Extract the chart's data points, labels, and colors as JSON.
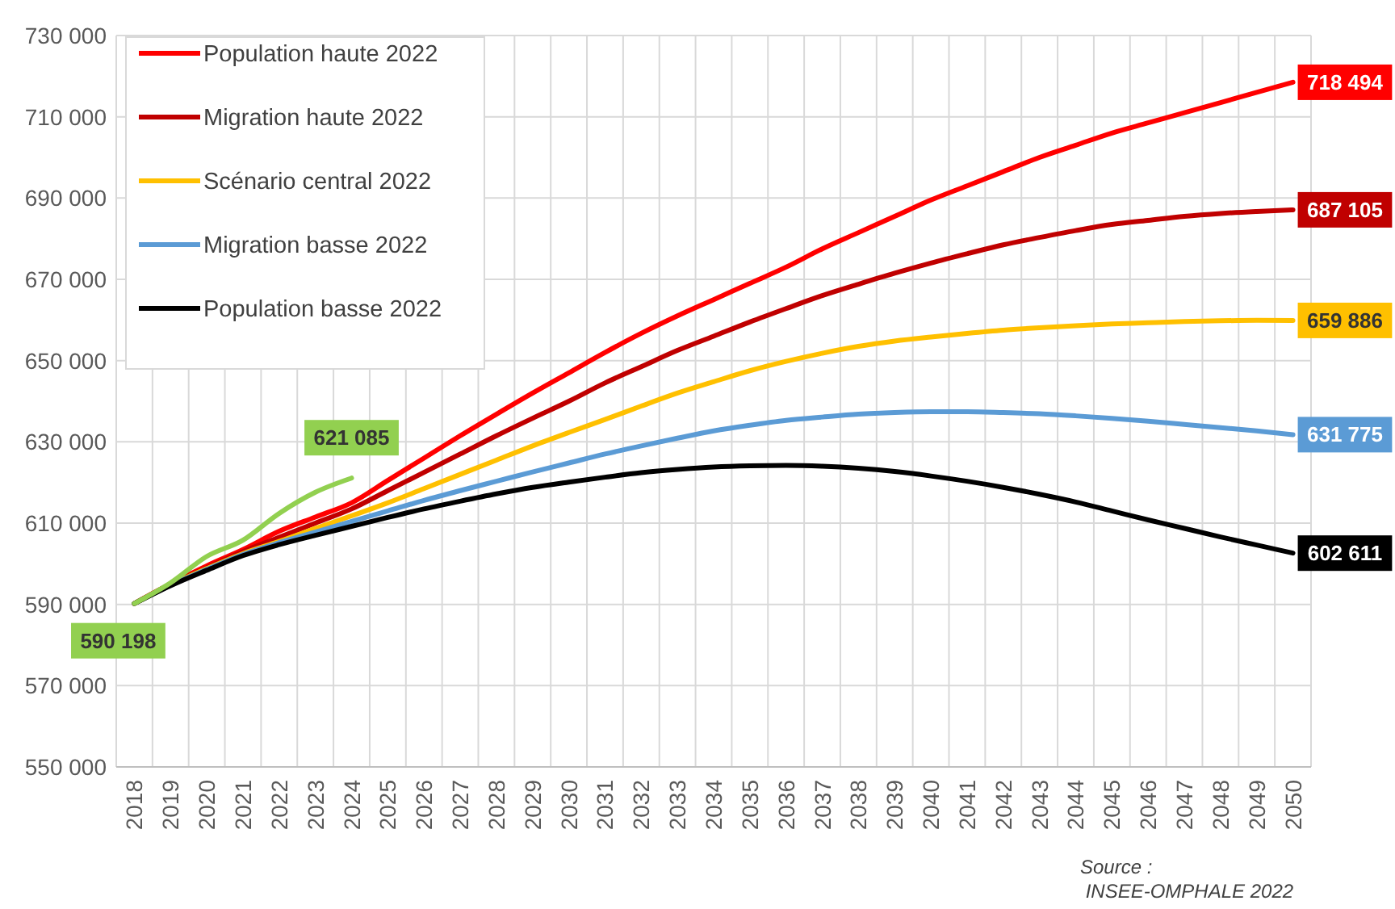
{
  "chart_data": {
    "type": "line",
    "categories": [
      "2018",
      "2019",
      "2020",
      "2021",
      "2022",
      "2023",
      "2024",
      "2025",
      "2026",
      "2027",
      "2028",
      "2029",
      "2030",
      "2031",
      "2032",
      "2033",
      "2034",
      "2035",
      "2036",
      "2037",
      "2038",
      "2039",
      "2040",
      "2041",
      "2042",
      "2043",
      "2044",
      "2045",
      "2046",
      "2047",
      "2048",
      "2049",
      "2050"
    ],
    "ylim": [
      550000,
      730000
    ],
    "yticks": [
      {
        "value": 550000,
        "label": "550 000"
      },
      {
        "value": 570000,
        "label": "570 000"
      },
      {
        "value": 590000,
        "label": "590 000"
      },
      {
        "value": 610000,
        "label": "610 000"
      },
      {
        "value": 630000,
        "label": "630 000"
      },
      {
        "value": 650000,
        "label": "650 000"
      },
      {
        "value": 670000,
        "label": "670 000"
      },
      {
        "value": 690000,
        "label": "690 000"
      },
      {
        "value": 710000,
        "label": "710 000"
      },
      {
        "value": 730000,
        "label": "730 000"
      }
    ],
    "grid": true,
    "legend": "top left",
    "marker": "none",
    "line_style": "solid",
    "annotations": [
      "Source : INSEE-OMPHALE 2022"
    ],
    "series": [
      {
        "name": "Population haute 2022",
        "color": "#ff0000",
        "values": [
          590200,
          595000,
          599500,
          603500,
          608000,
          611500,
          615000,
          620500,
          626000,
          631500,
          636800,
          642000,
          647000,
          652000,
          656700,
          661000,
          665000,
          669000,
          673000,
          677500,
          681500,
          685500,
          689500,
          693000,
          696500,
          700000,
          703000,
          706000,
          708500,
          711000,
          713500,
          716000,
          718494
        ],
        "value_labels": [
          null,
          null,
          null,
          null,
          null,
          null,
          null,
          null,
          null,
          null,
          null,
          null,
          null,
          null,
          null,
          null,
          null,
          null,
          null,
          null,
          null,
          null,
          null,
          null,
          null,
          null,
          null,
          null,
          null,
          null,
          null,
          null,
          "718 494"
        ]
      },
      {
        "name": "Migration haute 2022",
        "color": "#c00000",
        "values": [
          590200,
          595000,
          599000,
          603000,
          606500,
          610000,
          613500,
          618000,
          622500,
          627000,
          631500,
          635800,
          640000,
          644500,
          648500,
          652500,
          656000,
          659500,
          662800,
          666000,
          668800,
          671500,
          674000,
          676300,
          678500,
          680300,
          682000,
          683500,
          684500,
          685500,
          686200,
          686700,
          687105
        ],
        "value_labels": [
          null,
          null,
          null,
          null,
          null,
          null,
          null,
          null,
          null,
          null,
          null,
          null,
          null,
          null,
          null,
          null,
          null,
          null,
          null,
          null,
          null,
          null,
          null,
          null,
          null,
          null,
          null,
          null,
          null,
          null,
          null,
          null,
          "687 105"
        ]
      },
      {
        "name": "Scénario central 2022",
        "color": "#ffc000",
        "values": [
          590200,
          594800,
          598800,
          602500,
          605500,
          608700,
          611800,
          615000,
          618500,
          622000,
          625500,
          629000,
          632300,
          635500,
          638800,
          642000,
          644800,
          647500,
          649800,
          651800,
          653500,
          654800,
          655800,
          656700,
          657500,
          658100,
          658600,
          659000,
          659300,
          659600,
          659800,
          659900,
          659886
        ],
        "value_labels": [
          null,
          null,
          null,
          null,
          null,
          null,
          null,
          null,
          null,
          null,
          null,
          null,
          null,
          null,
          null,
          null,
          null,
          null,
          null,
          null,
          null,
          null,
          null,
          null,
          null,
          null,
          null,
          null,
          null,
          null,
          null,
          null,
          "659 886"
        ]
      },
      {
        "name": "Migration basse 2022",
        "color": "#5b9bd5",
        "values": [
          590200,
          594700,
          598600,
          602300,
          605200,
          607800,
          610400,
          613000,
          615600,
          618000,
          620300,
          622600,
          624800,
          627000,
          629000,
          630900,
          632700,
          634100,
          635300,
          636100,
          636800,
          637200,
          637400,
          637400,
          637200,
          636900,
          636400,
          635800,
          635100,
          634300,
          633500,
          632700,
          631775
        ],
        "value_labels": [
          null,
          null,
          null,
          null,
          null,
          null,
          null,
          null,
          null,
          null,
          null,
          null,
          null,
          null,
          null,
          null,
          null,
          null,
          null,
          null,
          null,
          null,
          null,
          null,
          null,
          null,
          null,
          null,
          null,
          null,
          null,
          null,
          "631 775"
        ]
      },
      {
        "name": "Population basse 2022",
        "color": "#000000",
        "values": [
          590200,
          594600,
          598400,
          602000,
          604700,
          607000,
          609200,
          611400,
          613500,
          615400,
          617200,
          618800,
          620100,
          621300,
          622400,
          623200,
          623800,
          624100,
          624200,
          624000,
          623500,
          622700,
          621600,
          620300,
          618800,
          617100,
          615200,
          613000,
          610800,
          608700,
          606600,
          604600,
          602611
        ],
        "value_labels": [
          null,
          null,
          null,
          null,
          null,
          null,
          null,
          null,
          null,
          null,
          null,
          null,
          null,
          null,
          null,
          null,
          null,
          null,
          null,
          null,
          null,
          null,
          null,
          null,
          null,
          null,
          null,
          null,
          null,
          null,
          null,
          null,
          "602 611"
        ]
      },
      {
        "color": "#92d050",
        "values": [
          590198,
          595300,
          601800,
          605800,
          612400,
          617600,
          621085,
          null,
          null,
          null,
          null,
          null,
          null,
          null,
          null,
          null,
          null,
          null,
          null,
          null,
          null,
          null,
          null,
          null,
          null,
          null,
          null,
          null,
          null,
          null,
          null,
          null,
          null
        ],
        "value_labels": [
          "590 198",
          null,
          null,
          null,
          null,
          null,
          "621 085",
          null,
          null,
          null,
          null,
          null,
          null,
          null,
          null,
          null,
          null,
          null,
          null,
          null,
          null,
          null,
          null,
          null,
          null,
          null,
          null,
          null,
          null,
          null,
          null,
          null,
          null
        ]
      }
    ]
  }
}
